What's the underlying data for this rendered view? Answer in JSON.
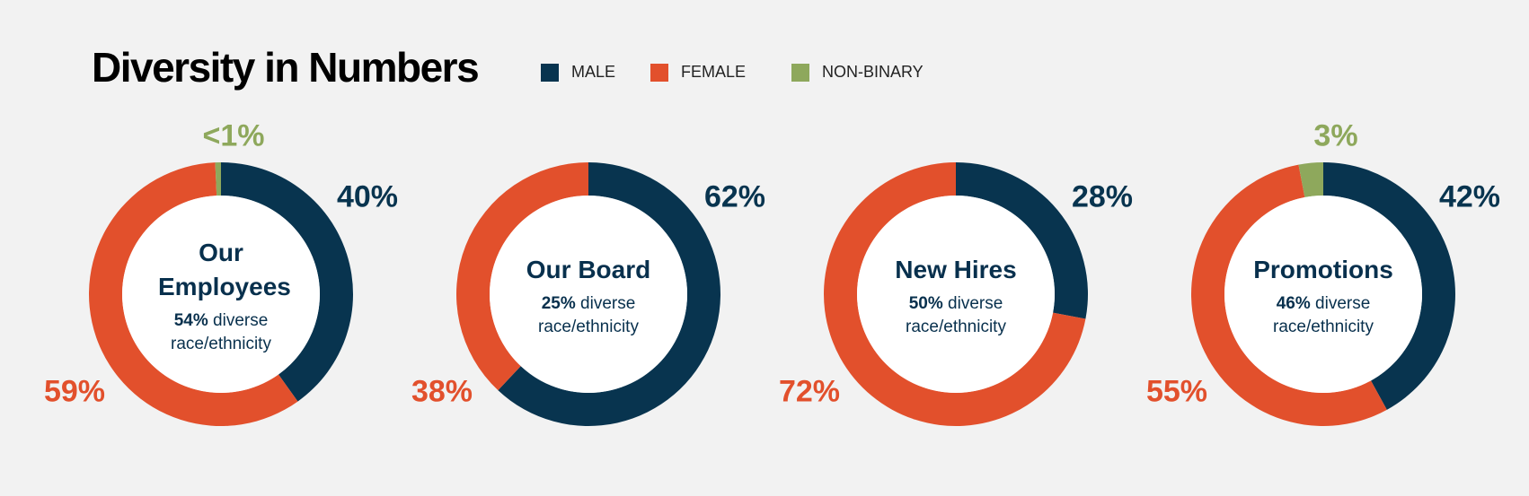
{
  "chart_data": {
    "type": "pie",
    "title": "Diversity in Numbers",
    "legend": [
      {
        "label": "MALE",
        "color": "#08344f"
      },
      {
        "label": "FEMALE",
        "color": "#e2502c"
      },
      {
        "label": "NON-BINARY",
        "color": "#8ea85c"
      }
    ],
    "legend_placement": "top",
    "charts": [
      {
        "title": "Our Employees",
        "diverse_pct": "54%",
        "diverse_text": "diverse",
        "diverse_text2": "race/ethnicity",
        "values": {
          "male": 40,
          "female": 59,
          "nonbinary": 0.7
        },
        "labels": {
          "male": "40%",
          "female": "59%",
          "nonbinary": "<1%"
        }
      },
      {
        "title": "Our Board",
        "diverse_pct": "25%",
        "diverse_text": "diverse",
        "diverse_text2": "race/ethnicity",
        "values": {
          "male": 62,
          "female": 38,
          "nonbinary": 0
        },
        "labels": {
          "male": "62%",
          "female": "38%"
        }
      },
      {
        "title": "New Hires",
        "diverse_pct": "50%",
        "diverse_text": "diverse",
        "diverse_text2": "race/ethnicity",
        "values": {
          "male": 28,
          "female": 72,
          "nonbinary": 0
        },
        "labels": {
          "male": "28%",
          "female": "72%"
        }
      },
      {
        "title": "Promotions",
        "diverse_pct": "46%",
        "diverse_text": "diverse",
        "diverse_text2": "race/ethnicity",
        "values": {
          "male": 42,
          "female": 55,
          "nonbinary": 3
        },
        "labels": {
          "male": "42%",
          "female": "55%",
          "nonbinary": "3%"
        }
      }
    ]
  }
}
